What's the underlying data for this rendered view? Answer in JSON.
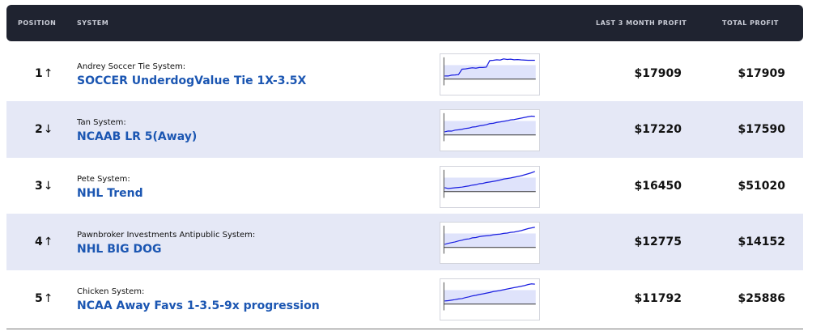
{
  "header": {
    "position": "POSITION",
    "system": "SYSTEM",
    "last3": "LAST 3 MONTH PROFIT",
    "total": "TOTAL PROFIT"
  },
  "rows": [
    {
      "position": "1",
      "arrow": "↑",
      "owner": "Andrey Soccer Tie System:",
      "name": "SOCCER UnderdogValue Tie 1X-3.5X",
      "last3": "$17909",
      "total": "$17909",
      "spark": [
        0,
        0,
        0.05,
        0.06,
        0.08,
        0.4,
        0.42,
        0.45,
        0.48,
        0.46,
        0.5,
        0.5,
        0.52,
        0.9,
        0.92,
        0.95,
        0.93,
        1.0,
        0.97,
        0.98,
        0.95,
        0.96,
        0.94,
        0.93,
        0.92,
        0.92,
        0.92
      ]
    },
    {
      "position": "2",
      "arrow": "↓",
      "owner": "Tan System:",
      "name": "NCAAB LR 5(Away)",
      "last3": "$17220",
      "total": "$17590",
      "spark": [
        0,
        0.05,
        0.04,
        0.1,
        0.12,
        0.15,
        0.2,
        0.22,
        0.28,
        0.3,
        0.35,
        0.38,
        0.42,
        0.48,
        0.5,
        0.55,
        0.58,
        0.62,
        0.65,
        0.7,
        0.72,
        0.76,
        0.8,
        0.84,
        0.88,
        0.92,
        0.9
      ]
    },
    {
      "position": "3",
      "arrow": "↓",
      "owner": "Pete System:",
      "name": "NHL Trend",
      "last3": "$16450",
      "total": "$51020",
      "spark": [
        0.05,
        0,
        0.02,
        0.04,
        0.06,
        0.08,
        0.12,
        0.15,
        0.2,
        0.22,
        0.28,
        0.3,
        0.35,
        0.38,
        0.42,
        0.45,
        0.5,
        0.55,
        0.58,
        0.62,
        0.66,
        0.7,
        0.74,
        0.8,
        0.86,
        0.92,
        1.0
      ]
    },
    {
      "position": "4",
      "arrow": "↑",
      "owner": "Pawnbroker Investments Antipublic System:",
      "name": "NHL BIG DOG",
      "last3": "$12775",
      "total": "$14152",
      "spark": [
        0,
        0.06,
        0.1,
        0.14,
        0.2,
        0.24,
        0.3,
        0.32,
        0.38,
        0.4,
        0.45,
        0.48,
        0.5,
        0.52,
        0.56,
        0.58,
        0.6,
        0.64,
        0.66,
        0.7,
        0.72,
        0.76,
        0.8,
        0.86,
        0.92,
        0.96,
        1.0
      ]
    },
    {
      "position": "5",
      "arrow": "↑",
      "owner": "Chicken System:",
      "name": "NCAA Away Favs 1-3.5-9x progression",
      "last3": "$11792",
      "total": "$25886",
      "spark": [
        0,
        0.02,
        0.05,
        0.08,
        0.12,
        0.14,
        0.2,
        0.24,
        0.3,
        0.33,
        0.38,
        0.42,
        0.46,
        0.5,
        0.55,
        0.58,
        0.62,
        0.66,
        0.7,
        0.74,
        0.78,
        0.82,
        0.86,
        0.9,
        0.96,
        1.0,
        0.98
      ]
    }
  ],
  "colors": {
    "header_bg": "#1f2330",
    "alt_row": "#e5e8f6",
    "link": "#1b56b2",
    "spark_line": "#1a1ee0",
    "spark_band": "#dfe3fb"
  }
}
